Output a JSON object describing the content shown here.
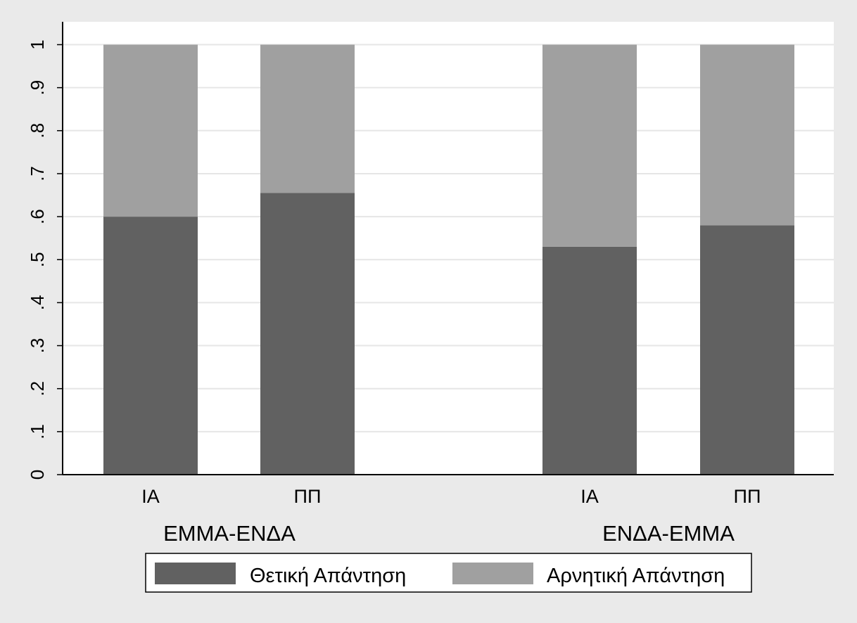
{
  "chart_data": {
    "type": "bar",
    "stacked": true,
    "groups": [
      {
        "label": "ΕΜΜΑ-ΕΝΔΑ",
        "categories": [
          "ΙΑ",
          "ΠΠ"
        ]
      },
      {
        "label": "ΕΝΔΑ-ΕΜΜΑ",
        "categories": [
          "ΙΑ",
          "ΠΠ"
        ]
      }
    ],
    "series": [
      {
        "name": "Θετική Απάντηση",
        "color": "#616161",
        "values": [
          0.6,
          0.655,
          0.53,
          0.58
        ]
      },
      {
        "name": "Αρνητική Απάντηση",
        "color": "#a0a0a0",
        "values": [
          0.4,
          0.345,
          0.47,
          0.42
        ]
      }
    ],
    "yticks": [
      "0",
      ".1",
      ".2",
      ".3",
      ".4",
      ".5",
      ".6",
      ".7",
      ".8",
      ".9",
      "1"
    ],
    "ylim": [
      0,
      1.05
    ],
    "grid": true,
    "legend_position": "bottom",
    "colors": {
      "plot_bg": "#ffffff",
      "outer_bg": "#eaeaea",
      "grid": "#e6e6e6"
    }
  }
}
